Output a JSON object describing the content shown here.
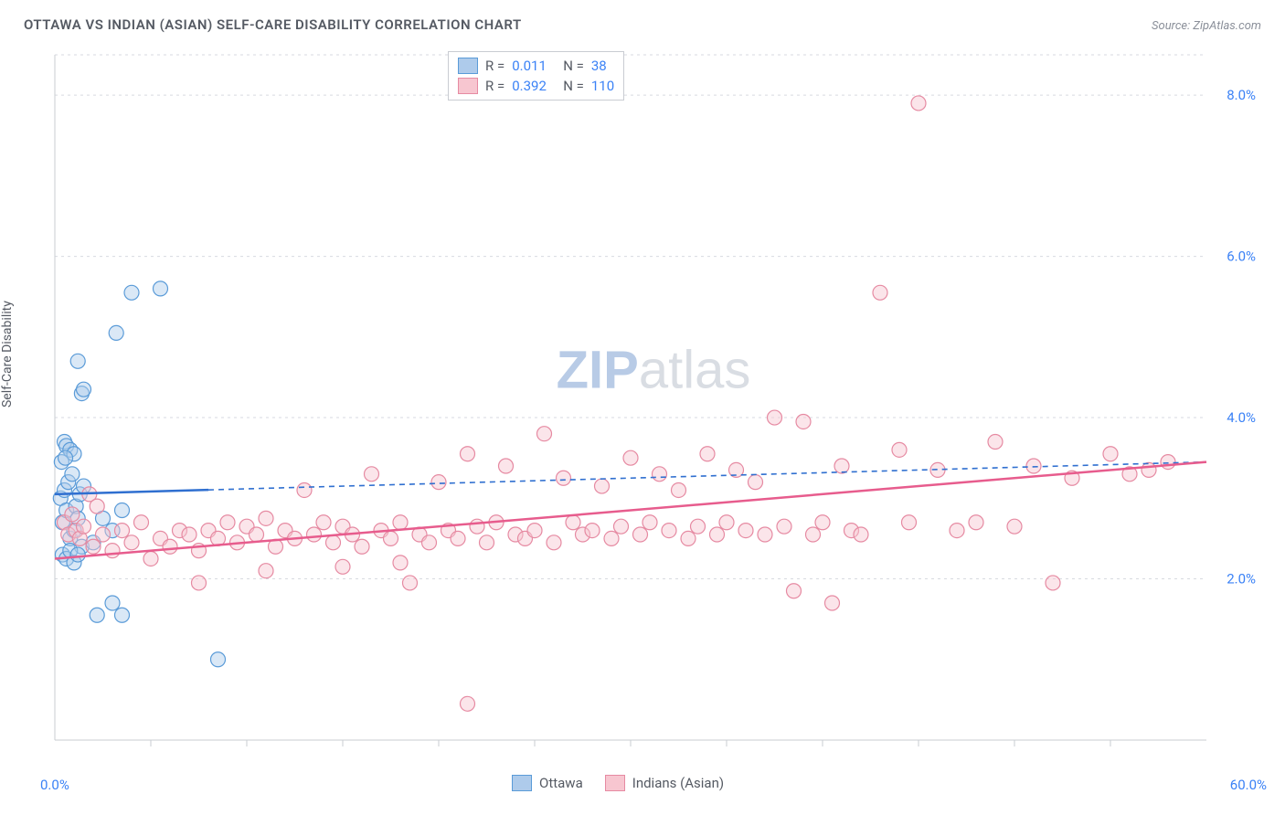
{
  "title": "OTTAWA VS INDIAN (ASIAN) SELF-CARE DISABILITY CORRELATION CHART",
  "source_label": "Source: ZipAtlas.com",
  "y_axis_label": "Self-Care Disability",
  "watermark": {
    "part1": "ZIP",
    "part2": "atlas"
  },
  "colors": {
    "blue_fill": "#aecbeb",
    "blue_stroke": "#5a9bd8",
    "blue_line": "#2f6fd0",
    "pink_fill": "#f7c6d0",
    "pink_stroke": "#e68aa2",
    "pink_line": "#e75c8d",
    "grid": "#d7dae0",
    "axis": "#c9ccd2",
    "tick_label": "#3b82f6",
    "text": "#555a63",
    "bg": "#ffffff"
  },
  "chart": {
    "type": "scatter",
    "xlim": [
      0,
      60
    ],
    "ylim": [
      0,
      8.5
    ],
    "x_axis_min_label": "0.0%",
    "x_axis_max_label": "60.0%",
    "y_ticks": [
      2.0,
      4.0,
      6.0,
      8.0
    ],
    "y_tick_labels": [
      "2.0%",
      "4.0%",
      "6.0%",
      "8.0%"
    ],
    "x_minor_ticks": [
      5,
      10,
      15,
      20,
      25,
      30,
      35,
      40,
      45,
      50,
      55
    ],
    "marker_radius": 8,
    "marker_opacity": 0.45,
    "line_width": 2.5,
    "dash_pattern": "6,5"
  },
  "legend_top": {
    "rows": [
      {
        "swatch": "blue",
        "r_label": "R =",
        "r_value": "0.011",
        "n_label": "N =",
        "n_value": "38"
      },
      {
        "swatch": "pink",
        "r_label": "R =",
        "r_value": "0.392",
        "n_label": "N =",
        "n_value": "110"
      }
    ]
  },
  "legend_bottom": {
    "items": [
      {
        "swatch": "blue",
        "label": "Ottawa"
      },
      {
        "swatch": "pink",
        "label": "Indians (Asian)"
      }
    ]
  },
  "series": [
    {
      "name": "ottawa",
      "color_key": "blue",
      "trend": {
        "x1": 0,
        "y1": 3.05,
        "x2": 60,
        "y2": 3.45,
        "solid_until_x": 8
      },
      "points": [
        [
          0.3,
          3.0
        ],
        [
          0.4,
          2.7
        ],
        [
          0.5,
          3.1
        ],
        [
          0.6,
          2.85
        ],
        [
          0.7,
          3.2
        ],
        [
          0.8,
          2.5
        ],
        [
          0.9,
          3.3
        ],
        [
          1.0,
          2.6
        ],
        [
          1.1,
          2.9
        ],
        [
          1.2,
          2.75
        ],
        [
          1.3,
          3.05
        ],
        [
          1.4,
          2.4
        ],
        [
          1.5,
          3.15
        ],
        [
          0.5,
          3.7
        ],
        [
          0.6,
          3.65
        ],
        [
          0.8,
          3.6
        ],
        [
          1.0,
          3.55
        ],
        [
          1.2,
          4.7
        ],
        [
          1.4,
          4.3
        ],
        [
          1.5,
          4.35
        ],
        [
          3.2,
          5.05
        ],
        [
          4.0,
          5.55
        ],
        [
          5.5,
          5.6
        ],
        [
          2.0,
          2.45
        ],
        [
          2.5,
          2.75
        ],
        [
          3.0,
          2.6
        ],
        [
          3.5,
          2.85
        ],
        [
          2.2,
          1.55
        ],
        [
          3.0,
          1.7
        ],
        [
          3.5,
          1.55
        ],
        [
          8.5,
          1.0
        ],
        [
          0.4,
          2.3
        ],
        [
          0.6,
          2.25
        ],
        [
          0.8,
          2.35
        ],
        [
          1.0,
          2.2
        ],
        [
          1.2,
          2.3
        ],
        [
          0.35,
          3.45
        ],
        [
          0.55,
          3.5
        ]
      ]
    },
    {
      "name": "indians_asian",
      "color_key": "pink",
      "trend": {
        "x1": 0,
        "y1": 2.25,
        "x2": 60,
        "y2": 3.45,
        "solid_until_x": 60
      },
      "points": [
        [
          0.5,
          2.7
        ],
        [
          0.7,
          2.55
        ],
        [
          0.9,
          2.8
        ],
        [
          1.1,
          2.6
        ],
        [
          1.3,
          2.5
        ],
        [
          1.5,
          2.65
        ],
        [
          2.0,
          2.4
        ],
        [
          2.5,
          2.55
        ],
        [
          3.0,
          2.35
        ],
        [
          3.5,
          2.6
        ],
        [
          4.0,
          2.45
        ],
        [
          4.5,
          2.7
        ],
        [
          5.0,
          2.25
        ],
        [
          5.5,
          2.5
        ],
        [
          6.0,
          2.4
        ],
        [
          6.5,
          2.6
        ],
        [
          7.0,
          2.55
        ],
        [
          7.5,
          2.35
        ],
        [
          8.0,
          2.6
        ],
        [
          8.5,
          2.5
        ],
        [
          9.0,
          2.7
        ],
        [
          9.5,
          2.45
        ],
        [
          10.0,
          2.65
        ],
        [
          10.5,
          2.55
        ],
        [
          11.0,
          2.75
        ],
        [
          11.5,
          2.4
        ],
        [
          12.0,
          2.6
        ],
        [
          12.5,
          2.5
        ],
        [
          13.0,
          3.1
        ],
        [
          13.5,
          2.55
        ],
        [
          14.0,
          2.7
        ],
        [
          14.5,
          2.45
        ],
        [
          15.0,
          2.65
        ],
        [
          15.5,
          2.55
        ],
        [
          16.0,
          2.4
        ],
        [
          16.5,
          3.3
        ],
        [
          17.0,
          2.6
        ],
        [
          17.5,
          2.5
        ],
        [
          18.0,
          2.7
        ],
        [
          18.5,
          1.95
        ],
        [
          19.0,
          2.55
        ],
        [
          19.5,
          2.45
        ],
        [
          20.0,
          3.2
        ],
        [
          20.5,
          2.6
        ],
        [
          21.0,
          2.5
        ],
        [
          21.5,
          3.55
        ],
        [
          22.0,
          2.65
        ],
        [
          22.5,
          2.45
        ],
        [
          23.0,
          2.7
        ],
        [
          23.5,
          3.4
        ],
        [
          24.0,
          2.55
        ],
        [
          24.5,
          2.5
        ],
        [
          25.0,
          2.6
        ],
        [
          25.5,
          3.8
        ],
        [
          26.0,
          2.45
        ],
        [
          26.5,
          3.25
        ],
        [
          27.0,
          2.7
        ],
        [
          27.5,
          2.55
        ],
        [
          28.0,
          2.6
        ],
        [
          28.5,
          3.15
        ],
        [
          29.0,
          2.5
        ],
        [
          29.5,
          2.65
        ],
        [
          30.0,
          3.5
        ],
        [
          30.5,
          2.55
        ],
        [
          31.0,
          2.7
        ],
        [
          31.5,
          3.3
        ],
        [
          32.0,
          2.6
        ],
        [
          32.5,
          3.1
        ],
        [
          33.0,
          2.5
        ],
        [
          33.5,
          2.65
        ],
        [
          34.0,
          3.55
        ],
        [
          34.5,
          2.55
        ],
        [
          35.0,
          2.7
        ],
        [
          35.5,
          3.35
        ],
        [
          36.0,
          2.6
        ],
        [
          36.5,
          3.2
        ],
        [
          37.0,
          2.55
        ],
        [
          37.5,
          4.0
        ],
        [
          38.0,
          2.65
        ],
        [
          38.5,
          1.85
        ],
        [
          39.0,
          3.95
        ],
        [
          39.5,
          2.55
        ],
        [
          40.0,
          2.7
        ],
        [
          40.5,
          1.7
        ],
        [
          41.0,
          3.4
        ],
        [
          41.5,
          2.6
        ],
        [
          42.0,
          2.55
        ],
        [
          43.0,
          5.55
        ],
        [
          44.0,
          3.6
        ],
        [
          44.5,
          2.7
        ],
        [
          45.0,
          7.9
        ],
        [
          46.0,
          3.35
        ],
        [
          47.0,
          2.6
        ],
        [
          48.0,
          2.7
        ],
        [
          49.0,
          3.7
        ],
        [
          50.0,
          2.65
        ],
        [
          51.0,
          3.4
        ],
        [
          52.0,
          1.95
        ],
        [
          53.0,
          3.25
        ],
        [
          55.0,
          3.55
        ],
        [
          56.0,
          3.3
        ],
        [
          57.0,
          3.35
        ],
        [
          58.0,
          3.45
        ],
        [
          7.5,
          1.95
        ],
        [
          11.0,
          2.1
        ],
        [
          15.0,
          2.15
        ],
        [
          18.0,
          2.2
        ],
        [
          21.5,
          0.45
        ],
        [
          1.8,
          3.05
        ],
        [
          2.2,
          2.9
        ]
      ]
    }
  ]
}
